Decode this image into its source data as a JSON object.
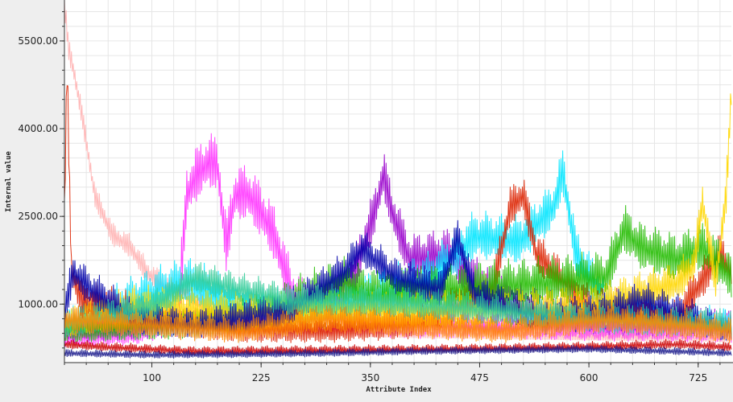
{
  "chart_data": {
    "type": "line",
    "title": "",
    "xlabel": "Attribute Index",
    "ylabel": "Internal value",
    "xlim": [
      0,
      763
    ],
    "ylim": [
      0,
      6200
    ],
    "x_ticks": [
      100,
      225,
      350,
      475,
      600,
      725
    ],
    "x_tick_labels": [
      "100",
      "225",
      "350",
      "475",
      "600",
      "725"
    ],
    "y_ticks": [
      1000,
      2500,
      4000,
      5500
    ],
    "y_tick_labels": [
      "1000.00",
      "2500.00",
      "4000.00",
      "5500.00"
    ],
    "grid": true,
    "legend": "none",
    "series_count_note": "many overlapping spectral profiles",
    "series": [
      {
        "color": "#ffb3b3",
        "anchors": [
          [
            0,
            6100
          ],
          [
            5,
            5300
          ],
          [
            10,
            5000
          ],
          [
            20,
            4200
          ],
          [
            35,
            2800
          ],
          [
            55,
            2150
          ],
          [
            75,
            1950
          ],
          [
            95,
            1500
          ],
          [
            115,
            1280
          ],
          [
            135,
            1100
          ],
          [
            160,
            900
          ],
          [
            200,
            600
          ],
          [
            300,
            450
          ],
          [
            400,
            420
          ],
          [
            500,
            400
          ],
          [
            600,
            380
          ],
          [
            763,
            350
          ]
        ],
        "amp": 300,
        "floor": 1200
      },
      {
        "color": "#ff33ff",
        "anchors": [
          [
            0,
            400
          ],
          [
            80,
            450
          ],
          [
            130,
            700
          ],
          [
            140,
            2800
          ],
          [
            150,
            3100
          ],
          [
            165,
            3350
          ],
          [
            175,
            3300
          ],
          [
            185,
            1900
          ],
          [
            195,
            2800
          ],
          [
            210,
            2800
          ],
          [
            225,
            2500
          ],
          [
            240,
            2100
          ],
          [
            260,
            1100
          ],
          [
            300,
            700
          ],
          [
            400,
            600
          ],
          [
            763,
            500
          ]
        ],
        "amp": 700,
        "floor": 0
      },
      {
        "color": "#9900cc",
        "anchors": [
          [
            0,
            500
          ],
          [
            250,
            700
          ],
          [
            300,
            1000
          ],
          [
            330,
            1400
          ],
          [
            355,
            2500
          ],
          [
            365,
            3150
          ],
          [
            375,
            2500
          ],
          [
            395,
            1700
          ],
          [
            440,
            1800
          ],
          [
            470,
            1300
          ],
          [
            520,
            900
          ],
          [
            600,
            700
          ],
          [
            763,
            600
          ]
        ],
        "amp": 600,
        "floor": 0
      },
      {
        "color": "#00e5ff",
        "anchors": [
          [
            0,
            600
          ],
          [
            60,
            900
          ],
          [
            100,
            1100
          ],
          [
            140,
            1300
          ],
          [
            200,
            900
          ],
          [
            300,
            800
          ],
          [
            420,
            1400
          ],
          [
            470,
            2100
          ],
          [
            520,
            2000
          ],
          [
            560,
            2600
          ],
          [
            570,
            3200
          ],
          [
            585,
            1800
          ],
          [
            620,
            900
          ],
          [
            700,
            700
          ],
          [
            763,
            600
          ]
        ],
        "amp": 600,
        "floor": 0
      },
      {
        "color": "#dd2200",
        "anchors": [
          [
            0,
            2500
          ],
          [
            3,
            5000
          ],
          [
            8,
            1500
          ],
          [
            20,
            1000
          ],
          [
            100,
            700
          ],
          [
            200,
            500
          ],
          [
            300,
            500
          ],
          [
            400,
            600
          ],
          [
            490,
            1200
          ],
          [
            510,
            2600
          ],
          [
            525,
            2800
          ],
          [
            540,
            1800
          ],
          [
            600,
            900
          ],
          [
            700,
            700
          ],
          [
            750,
            1800
          ],
          [
            763,
            1500
          ]
        ],
        "amp": 500,
        "floor": 0
      },
      {
        "color": "#22bb00",
        "anchors": [
          [
            0,
            500
          ],
          [
            150,
            600
          ],
          [
            250,
            900
          ],
          [
            320,
            1300
          ],
          [
            350,
            1100
          ],
          [
            450,
            1200
          ],
          [
            550,
            1300
          ],
          [
            620,
            1400
          ],
          [
            640,
            2200
          ],
          [
            660,
            1900
          ],
          [
            700,
            1700
          ],
          [
            730,
            1900
          ],
          [
            763,
            1400
          ]
        ],
        "amp": 600,
        "floor": 0
      },
      {
        "color": "#ffd700",
        "anchors": [
          [
            0,
            600
          ],
          [
            80,
            900
          ],
          [
            200,
            800
          ],
          [
            400,
            800
          ],
          [
            600,
            900
          ],
          [
            700,
            1300
          ],
          [
            720,
            1600
          ],
          [
            730,
            2700
          ],
          [
            745,
            1300
          ],
          [
            757,
            2800
          ],
          [
            763,
            4600
          ]
        ],
        "amp": 500,
        "floor": 0
      },
      {
        "color": "#0000aa",
        "anchors": [
          [
            0,
            800
          ],
          [
            10,
            1500
          ],
          [
            30,
            1200
          ],
          [
            80,
            700
          ],
          [
            150,
            600
          ],
          [
            250,
            800
          ],
          [
            320,
            1500
          ],
          [
            340,
            1900
          ],
          [
            380,
            1400
          ],
          [
            430,
            1200
          ],
          [
            450,
            2100
          ],
          [
            470,
            1100
          ],
          [
            550,
            700
          ],
          [
            620,
            800
          ],
          [
            660,
            1000
          ],
          [
            700,
            800
          ],
          [
            763,
            500
          ]
        ],
        "amp": 450,
        "floor": 0
      },
      {
        "color": "#33cc99",
        "anchors": [
          [
            0,
            600
          ],
          [
            100,
            900
          ],
          [
            150,
            1400
          ],
          [
            200,
            1200
          ],
          [
            260,
            1000
          ],
          [
            350,
            1000
          ],
          [
            450,
            900
          ],
          [
            600,
            700
          ],
          [
            763,
            600
          ]
        ],
        "amp": 400,
        "floor": 0
      },
      {
        "color": "#ff8800",
        "anchors": [
          [
            0,
            700
          ],
          [
            100,
            600
          ],
          [
            200,
            500
          ],
          [
            300,
            700
          ],
          [
            400,
            600
          ],
          [
            500,
            500
          ],
          [
            620,
            700
          ],
          [
            700,
            600
          ],
          [
            763,
            500
          ]
        ],
        "amp": 350,
        "floor": 0
      },
      {
        "color": "#cc0000",
        "anchors": [
          [
            0,
            300
          ],
          [
            50,
            250
          ],
          [
            150,
            180
          ],
          [
            300,
            200
          ],
          [
            450,
            220
          ],
          [
            600,
            260
          ],
          [
            700,
            300
          ],
          [
            763,
            250
          ]
        ],
        "amp": 120,
        "floor": 0
      },
      {
        "color": "#1a1a8c",
        "anchors": [
          [
            0,
            150
          ],
          [
            100,
            120
          ],
          [
            200,
            130
          ],
          [
            300,
            150
          ],
          [
            400,
            180
          ],
          [
            500,
            200
          ],
          [
            600,
            220
          ],
          [
            700,
            180
          ],
          [
            763,
            150
          ]
        ],
        "amp": 100,
        "floor": 0
      }
    ]
  }
}
